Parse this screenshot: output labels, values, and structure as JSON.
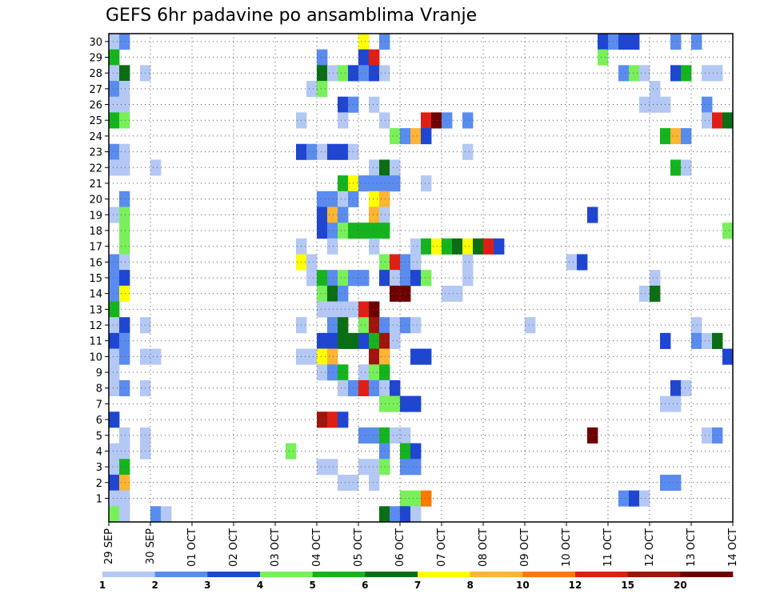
{
  "chart_data": {
    "type": "heatmap",
    "title": "GEFS 6hr padavine po ansamblima Vranje",
    "x_tick_labels": [
      "29 SEP",
      "30 SEP",
      "01 OCT",
      "02 OCT",
      "03 OCT",
      "04 OCT",
      "05 OCT",
      "06 OCT",
      "07 OCT",
      "08 OCT",
      "09 OCT",
      "10 OCT",
      "11 OCT",
      "12 OCT",
      "13 OCT",
      "14 OCT"
    ],
    "y_tick_labels": [
      "1",
      "2",
      "3",
      "4",
      "5",
      "6",
      "7",
      "8",
      "9",
      "10",
      "11",
      "12",
      "13",
      "14",
      "15",
      "16",
      "17",
      "18",
      "19",
      "20",
      "21",
      "22",
      "23",
      "24",
      "25",
      "26",
      "27",
      "28",
      "29",
      "30"
    ],
    "n_time_steps": 60,
    "n_members": 31,
    "grid": true,
    "legend_position": "bottom",
    "legend": {
      "labels": [
        "1",
        "2",
        "3",
        "4",
        "5",
        "6",
        "7",
        "8",
        "10",
        "12",
        "15",
        "20"
      ],
      "colors": [
        "#b4c8f5",
        "#5a8cf0",
        "#1e46d2",
        "#78f05a",
        "#14b41e",
        "#0a6e14",
        "#ffff00",
        "#ffb432",
        "#ff7800",
        "#e11e14",
        "#a0140a",
        "#6e0000"
      ]
    },
    "cells": [
      [
        0,
        30,
        1
      ],
      [
        1,
        30,
        2
      ],
      [
        24,
        30,
        7
      ],
      [
        26,
        30,
        2
      ],
      [
        47,
        30,
        3
      ],
      [
        48,
        30,
        2
      ],
      [
        49,
        30,
        3
      ],
      [
        50,
        30,
        3
      ],
      [
        54,
        30,
        2
      ],
      [
        56,
        30,
        2
      ],
      [
        0,
        29,
        5
      ],
      [
        20,
        29,
        2
      ],
      [
        24,
        29,
        3
      ],
      [
        25,
        29,
        10
      ],
      [
        47,
        29,
        4
      ],
      [
        0,
        28,
        1
      ],
      [
        1,
        28,
        6
      ],
      [
        3,
        28,
        1
      ],
      [
        20,
        28,
        6
      ],
      [
        21,
        28,
        1
      ],
      [
        22,
        28,
        4
      ],
      [
        23,
        28,
        3
      ],
      [
        24,
        28,
        2
      ],
      [
        25,
        28,
        3
      ],
      [
        26,
        28,
        1
      ],
      [
        49,
        28,
        2
      ],
      [
        50,
        28,
        4
      ],
      [
        51,
        28,
        1
      ],
      [
        54,
        28,
        3
      ],
      [
        55,
        28,
        5
      ],
      [
        57,
        28,
        1
      ],
      [
        58,
        28,
        1
      ],
      [
        0,
        27,
        2
      ],
      [
        1,
        27,
        1
      ],
      [
        19,
        27,
        1
      ],
      [
        20,
        27,
        4
      ],
      [
        52,
        27,
        1
      ],
      [
        0,
        26,
        1
      ],
      [
        1,
        26,
        1
      ],
      [
        22,
        26,
        3
      ],
      [
        23,
        26,
        2
      ],
      [
        25,
        26,
        1
      ],
      [
        51,
        26,
        1
      ],
      [
        52,
        26,
        1
      ],
      [
        53,
        26,
        1
      ],
      [
        57,
        26,
        2
      ],
      [
        0,
        25,
        5
      ],
      [
        1,
        25,
        4
      ],
      [
        18,
        25,
        1
      ],
      [
        22,
        25,
        1
      ],
      [
        26,
        25,
        1
      ],
      [
        30,
        25,
        10
      ],
      [
        31,
        25,
        12
      ],
      [
        32,
        25,
        2
      ],
      [
        34,
        25,
        2
      ],
      [
        57,
        25,
        1
      ],
      [
        58,
        25,
        10
      ],
      [
        59,
        25,
        6
      ],
      [
        27,
        24,
        4
      ],
      [
        28,
        24,
        2
      ],
      [
        29,
        24,
        8
      ],
      [
        30,
        24,
        3
      ],
      [
        53,
        24,
        5
      ],
      [
        54,
        24,
        8
      ],
      [
        55,
        24,
        2
      ],
      [
        0,
        23,
        2
      ],
      [
        1,
        23,
        1
      ],
      [
        18,
        23,
        3
      ],
      [
        19,
        23,
        2
      ],
      [
        20,
        23,
        1
      ],
      [
        21,
        23,
        3
      ],
      [
        22,
        23,
        3
      ],
      [
        23,
        23,
        1
      ],
      [
        34,
        23,
        1
      ],
      [
        0,
        22,
        1
      ],
      [
        1,
        22,
        1
      ],
      [
        4,
        22,
        1
      ],
      [
        25,
        22,
        1
      ],
      [
        26,
        22,
        6
      ],
      [
        27,
        22,
        1
      ],
      [
        54,
        22,
        5
      ],
      [
        55,
        22,
        1
      ],
      [
        22,
        21,
        5
      ],
      [
        23,
        21,
        7
      ],
      [
        24,
        21,
        2
      ],
      [
        25,
        21,
        2
      ],
      [
        26,
        21,
        2
      ],
      [
        27,
        21,
        2
      ],
      [
        30,
        21,
        1
      ],
      [
        1,
        20,
        2
      ],
      [
        20,
        20,
        2
      ],
      [
        21,
        20,
        2
      ],
      [
        22,
        20,
        1
      ],
      [
        23,
        20,
        2
      ],
      [
        25,
        20,
        7
      ],
      [
        26,
        20,
        8
      ],
      [
        0,
        19,
        1
      ],
      [
        1,
        19,
        4
      ],
      [
        20,
        19,
        3
      ],
      [
        21,
        19,
        8
      ],
      [
        22,
        19,
        2
      ],
      [
        25,
        19,
        8
      ],
      [
        26,
        19,
        1
      ],
      [
        46,
        19,
        3
      ],
      [
        1,
        18,
        4
      ],
      [
        20,
        18,
        3
      ],
      [
        21,
        18,
        2
      ],
      [
        22,
        18,
        4
      ],
      [
        23,
        18,
        5
      ],
      [
        24,
        18,
        5
      ],
      [
        25,
        18,
        5
      ],
      [
        26,
        18,
        5
      ],
      [
        59,
        18,
        4
      ],
      [
        1,
        17,
        4
      ],
      [
        18,
        17,
        1
      ],
      [
        21,
        17,
        1
      ],
      [
        25,
        17,
        1
      ],
      [
        29,
        17,
        1
      ],
      [
        30,
        17,
        5
      ],
      [
        31,
        17,
        7
      ],
      [
        32,
        17,
        5
      ],
      [
        33,
        17,
        6
      ],
      [
        34,
        17,
        7
      ],
      [
        35,
        17,
        6
      ],
      [
        36,
        17,
        10
      ],
      [
        37,
        17,
        3
      ],
      [
        0,
        16,
        2
      ],
      [
        1,
        16,
        1
      ],
      [
        18,
        16,
        7
      ],
      [
        19,
        16,
        1
      ],
      [
        26,
        16,
        4
      ],
      [
        27,
        16,
        10
      ],
      [
        28,
        16,
        2
      ],
      [
        29,
        16,
        1
      ],
      [
        34,
        16,
        1
      ],
      [
        44,
        16,
        1
      ],
      [
        45,
        16,
        3
      ],
      [
        0,
        15,
        2
      ],
      [
        1,
        15,
        3
      ],
      [
        19,
        15,
        1
      ],
      [
        20,
        15,
        5
      ],
      [
        21,
        15,
        2
      ],
      [
        22,
        15,
        4
      ],
      [
        23,
        15,
        2
      ],
      [
        24,
        15,
        2
      ],
      [
        26,
        15,
        3
      ],
      [
        27,
        15,
        1
      ],
      [
        28,
        15,
        2
      ],
      [
        29,
        15,
        3
      ],
      [
        30,
        15,
        4
      ],
      [
        34,
        15,
        1
      ],
      [
        52,
        15,
        1
      ],
      [
        0,
        14,
        2
      ],
      [
        1,
        14,
        7
      ],
      [
        20,
        14,
        4
      ],
      [
        21,
        14,
        6
      ],
      [
        22,
        14,
        2
      ],
      [
        27,
        14,
        12
      ],
      [
        28,
        14,
        12
      ],
      [
        32,
        14,
        1
      ],
      [
        33,
        14,
        1
      ],
      [
        51,
        14,
        1
      ],
      [
        52,
        14,
        6
      ],
      [
        0,
        13,
        5
      ],
      [
        20,
        13,
        1
      ],
      [
        21,
        13,
        1
      ],
      [
        22,
        13,
        1
      ],
      [
        23,
        13,
        1
      ],
      [
        24,
        13,
        10
      ],
      [
        25,
        13,
        12
      ],
      [
        0,
        12,
        1
      ],
      [
        1,
        12,
        3
      ],
      [
        3,
        12,
        1
      ],
      [
        18,
        12,
        1
      ],
      [
        21,
        12,
        2
      ],
      [
        22,
        12,
        6
      ],
      [
        24,
        12,
        4
      ],
      [
        25,
        12,
        11
      ],
      [
        26,
        12,
        2
      ],
      [
        27,
        12,
        1
      ],
      [
        28,
        12,
        2
      ],
      [
        29,
        12,
        1
      ],
      [
        40,
        12,
        1
      ],
      [
        56,
        12,
        1
      ],
      [
        0,
        11,
        3
      ],
      [
        1,
        11,
        2
      ],
      [
        20,
        11,
        3
      ],
      [
        21,
        11,
        3
      ],
      [
        22,
        11,
        6
      ],
      [
        23,
        11,
        6
      ],
      [
        24,
        11,
        3
      ],
      [
        25,
        11,
        5
      ],
      [
        26,
        11,
        11
      ],
      [
        27,
        11,
        1
      ],
      [
        53,
        11,
        3
      ],
      [
        56,
        11,
        2
      ],
      [
        57,
        11,
        1
      ],
      [
        58,
        11,
        6
      ],
      [
        0,
        10,
        1
      ],
      [
        1,
        10,
        2
      ],
      [
        3,
        10,
        1
      ],
      [
        4,
        10,
        1
      ],
      [
        18,
        10,
        1
      ],
      [
        19,
        10,
        1
      ],
      [
        20,
        10,
        7
      ],
      [
        21,
        10,
        8
      ],
      [
        25,
        10,
        11
      ],
      [
        26,
        10,
        8
      ],
      [
        29,
        10,
        3
      ],
      [
        30,
        10,
        3
      ],
      [
        59,
        10,
        3
      ],
      [
        0,
        9,
        1
      ],
      [
        20,
        9,
        1
      ],
      [
        21,
        9,
        2
      ],
      [
        22,
        9,
        5
      ],
      [
        24,
        9,
        1
      ],
      [
        25,
        9,
        4
      ],
      [
        26,
        9,
        5
      ],
      [
        0,
        8,
        1
      ],
      [
        1,
        8,
        2
      ],
      [
        3,
        8,
        1
      ],
      [
        22,
        8,
        1
      ],
      [
        23,
        8,
        2
      ],
      [
        24,
        8,
        10
      ],
      [
        25,
        8,
        2
      ],
      [
        26,
        8,
        1
      ],
      [
        27,
        8,
        3
      ],
      [
        54,
        8,
        3
      ],
      [
        55,
        8,
        1
      ],
      [
        26,
        7,
        4
      ],
      [
        27,
        7,
        4
      ],
      [
        28,
        7,
        3
      ],
      [
        29,
        7,
        3
      ],
      [
        53,
        7,
        1
      ],
      [
        54,
        7,
        1
      ],
      [
        0,
        6,
        3
      ],
      [
        20,
        6,
        11
      ],
      [
        21,
        6,
        10
      ],
      [
        22,
        6,
        3
      ],
      [
        1,
        5,
        1
      ],
      [
        3,
        5,
        1
      ],
      [
        24,
        5,
        2
      ],
      [
        25,
        5,
        2
      ],
      [
        26,
        5,
        5
      ],
      [
        27,
        5,
        1
      ],
      [
        28,
        5,
        1
      ],
      [
        46,
        5,
        12
      ],
      [
        57,
        5,
        1
      ],
      [
        58,
        5,
        2
      ],
      [
        0,
        4,
        1
      ],
      [
        1,
        4,
        1
      ],
      [
        3,
        4,
        1
      ],
      [
        17,
        4,
        4
      ],
      [
        26,
        4,
        2
      ],
      [
        28,
        4,
        5
      ],
      [
        29,
        4,
        3
      ],
      [
        0,
        3,
        1
      ],
      [
        1,
        3,
        5
      ],
      [
        20,
        3,
        1
      ],
      [
        21,
        3,
        1
      ],
      [
        24,
        3,
        1
      ],
      [
        25,
        3,
        1
      ],
      [
        26,
        3,
        4
      ],
      [
        28,
        3,
        2
      ],
      [
        29,
        3,
        2
      ],
      [
        0,
        2,
        3
      ],
      [
        1,
        2,
        8
      ],
      [
        22,
        2,
        1
      ],
      [
        23,
        2,
        1
      ],
      [
        25,
        2,
        1
      ],
      [
        53,
        2,
        2
      ],
      [
        54,
        2,
        2
      ],
      [
        0,
        1,
        1
      ],
      [
        1,
        1,
        1
      ],
      [
        28,
        1,
        4
      ],
      [
        29,
        1,
        4
      ],
      [
        30,
        1,
        9
      ],
      [
        49,
        1,
        2
      ],
      [
        50,
        1,
        3
      ],
      [
        51,
        1,
        1
      ],
      [
        0,
        0,
        4
      ],
      [
        1,
        0,
        1
      ],
      [
        4,
        0,
        2
      ],
      [
        5,
        0,
        1
      ],
      [
        26,
        0,
        6
      ],
      [
        27,
        0,
        2
      ],
      [
        28,
        0,
        3
      ],
      [
        29,
        0,
        1
      ]
    ]
  }
}
